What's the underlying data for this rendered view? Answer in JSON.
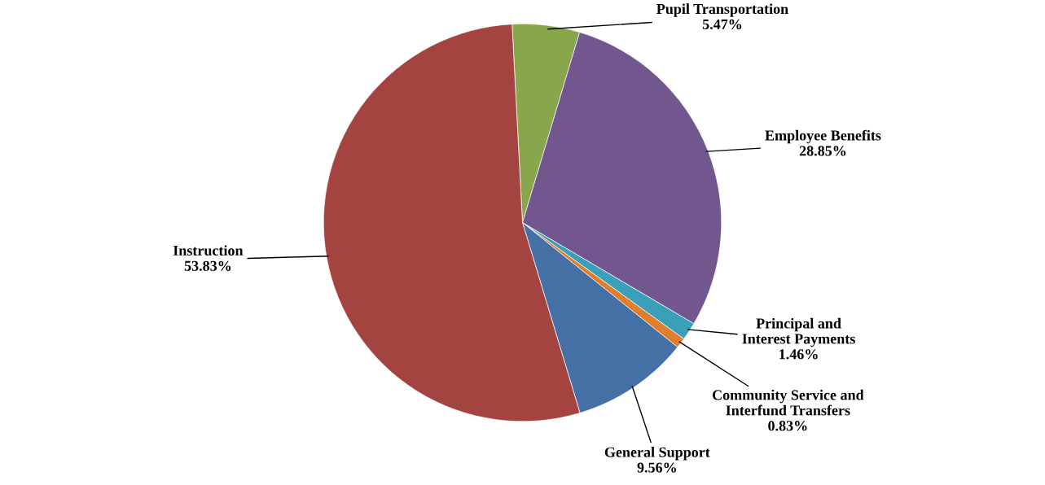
{
  "chart_data": {
    "type": "pie",
    "categories": [
      "Pupil Transportation",
      "Employee Benefits",
      "Principal and Interest Payments",
      "Community Service and Interfund Transfers",
      "General Support",
      "Instruction"
    ],
    "values": [
      5.47,
      28.85,
      1.46,
      0.83,
      9.56,
      53.83
    ],
    "colors": [
      "#8aa64c",
      "#72578f",
      "#3a9fb8",
      "#e07e2c",
      "#4470a6",
      "#a44441"
    ],
    "value_labels": [
      "5.47%",
      "28.85%",
      "1.46%",
      "0.83%",
      "9.56%",
      "53.83%"
    ],
    "legend": false
  }
}
